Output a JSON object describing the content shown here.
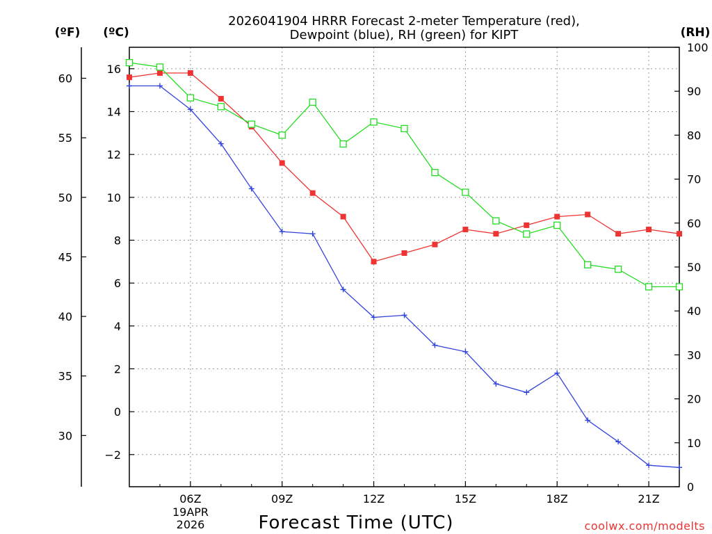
{
  "chart_data": {
    "type": "line",
    "title_line1": "2026041904 HRRR Forecast 2-meter Temperature (red),",
    "title_line2": "Dewpoint (blue), RH (green) for KIPT",
    "xlabel": "Forecast Time (UTC)",
    "watermark": "coolwx.com/modelts",
    "date_label": [
      "19APR",
      "2026"
    ],
    "axis_units": {
      "fahrenheit": "(ºF)",
      "celsius": "(ºC)",
      "rh": "(RH)"
    },
    "x": [
      4,
      5,
      6,
      7,
      8,
      9,
      10,
      11,
      12,
      13,
      14,
      15,
      16,
      17,
      18,
      19,
      20,
      21,
      22
    ],
    "xlim": [
      4,
      22
    ],
    "x_ticks": [
      {
        "hour": 6,
        "label": "06Z"
      },
      {
        "hour": 9,
        "label": "09Z"
      },
      {
        "hour": 12,
        "label": "12Z"
      },
      {
        "hour": 15,
        "label": "15Z"
      },
      {
        "hour": 18,
        "label": "18Z"
      },
      {
        "hour": 21,
        "label": "21Z"
      }
    ],
    "celsius_axis": {
      "ylim": [
        -3.5,
        17
      ],
      "ticks": [
        "-2",
        "0",
        "2",
        "4",
        "6",
        "8",
        "10",
        "12",
        "14",
        "16"
      ]
    },
    "fahrenheit_axis": {
      "ticks": [
        "30",
        "35",
        "40",
        "45",
        "50",
        "55",
        "60"
      ]
    },
    "rh_axis": {
      "ylim": [
        0,
        100
      ],
      "ticks": [
        "0",
        "10",
        "20",
        "30",
        "40",
        "50",
        "60",
        "70",
        "80",
        "90",
        "100"
      ]
    },
    "series": [
      {
        "name": "Temperature",
        "axis": "celsius",
        "color": "#ee3333",
        "marker": "filled-square",
        "values": [
          15.6,
          15.8,
          15.8,
          14.6,
          13.3,
          11.6,
          10.2,
          9.1,
          7.0,
          7.4,
          7.8,
          8.5,
          8.3,
          8.7,
          9.1,
          9.2,
          8.3,
          8.5,
          8.3
        ]
      },
      {
        "name": "Dewpoint",
        "axis": "celsius",
        "color": "#3344dd",
        "marker": "plus",
        "values": [
          15.2,
          15.2,
          14.1,
          12.5,
          10.4,
          8.4,
          8.3,
          5.7,
          4.4,
          4.5,
          3.1,
          2.8,
          1.3,
          0.9,
          1.8,
          -0.4,
          -1.4,
          -2.5,
          -2.6
        ]
      },
      {
        "name": "RH",
        "axis": "rh",
        "color": "#22dd22",
        "marker": "open-square",
        "values": [
          96.5,
          95.5,
          88.5,
          86.5,
          82.5,
          80.0,
          87.5,
          78.0,
          83.0,
          81.5,
          71.5,
          67.0,
          60.5,
          57.5,
          59.5,
          50.5,
          49.5,
          45.5,
          45.5
        ]
      }
    ]
  }
}
